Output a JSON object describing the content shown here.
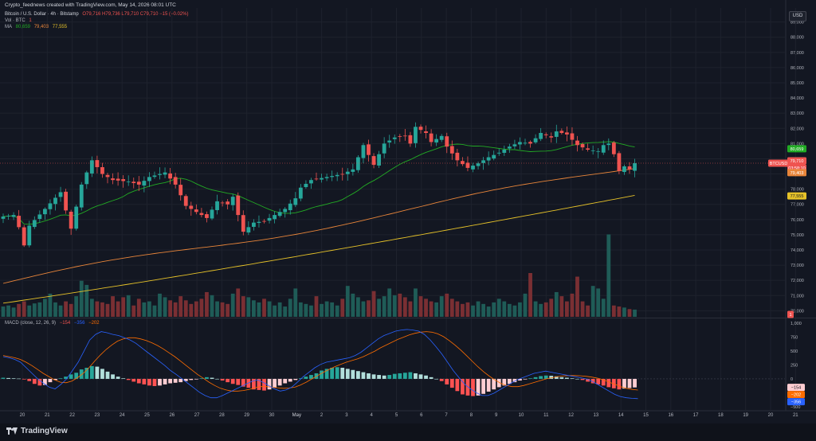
{
  "header": {
    "text": "Crypto_feednews created with TradingView.com, May 14, 2026 08:01 UTC"
  },
  "legend": {
    "symbol": "Bitcoin / U.S. Dollar · 4h · Bitstamp",
    "ohlc": "O79,716  H79,736  L79,710  C79,710  −15 (−0.02%)",
    "vol_label": "Vol · BTC",
    "vol_value": "1",
    "ma_label": "MA",
    "ma1": "80,659",
    "ma2": "79,403",
    "ma3": "77,555",
    "macd_label": "MACD (close, 12, 26, 9)",
    "macd_hist": "−154",
    "macd_line": "−356",
    "macd_signal": "−202"
  },
  "currency": "USD",
  "brand": "TradingView",
  "colors": {
    "up": "#26a69a",
    "down": "#ef5350",
    "ma1": "#22ab24",
    "ma2": "#e8853a",
    "ma3": "#e6c229",
    "macd": "#2962ff",
    "signal": "#ff6d00",
    "bg": "#131722",
    "grid": "#1e222d",
    "text": "#b2b5be"
  },
  "price_labels": {
    "symbol": "BTCUSD",
    "price": "79,710",
    "countdown": "03:58:10",
    "ma1": "80,659",
    "ma2": "79,403",
    "ma3": "77,555",
    "vol": "1",
    "macd_hist": "−154",
    "macd_signal": "−202",
    "macd_line": "−356"
  },
  "chart_data": {
    "type": "candlestick",
    "price_axis": {
      "ticks": [
        "89,000",
        "88,000",
        "87,000",
        "86,000",
        "85,000",
        "84,000",
        "83,000",
        "82,000",
        "81,000",
        "80,000",
        "79,000",
        "78,000",
        "77,000",
        "76,000",
        "75,000",
        "74,000",
        "73,000",
        "72,000",
        "71,000",
        "70,000"
      ],
      "range": [
        69600,
        89400
      ]
    },
    "macd_axis": {
      "ticks": [
        "1,000",
        "750",
        "500",
        "250",
        "0",
        "−250",
        "−500"
      ],
      "range": [
        -560,
        1060
      ]
    },
    "x_axis": {
      "labels": [
        "20",
        "21",
        "22",
        "23",
        "24",
        "25",
        "26",
        "27",
        "28",
        "29",
        "30",
        "May",
        "2",
        "3",
        "4",
        "5",
        "6",
        "7",
        "8",
        "9",
        "10",
        "11",
        "12",
        "13",
        "14",
        "15",
        "16",
        "17",
        "18",
        "19",
        "20",
        "21"
      ]
    },
    "close_path": [
      [
        0,
        76200
      ],
      [
        2,
        76300
      ],
      [
        3,
        75500
      ],
      [
        4,
        74300
      ],
      [
        5,
        75600
      ],
      [
        8,
        76700
      ],
      [
        11,
        77800
      ],
      [
        13,
        75400
      ],
      [
        15,
        78300
      ],
      [
        17,
        79900
      ],
      [
        19,
        79000
      ],
      [
        21,
        78600
      ],
      [
        24,
        78500
      ],
      [
        26,
        78300
      ],
      [
        28,
        78800
      ],
      [
        31,
        79100
      ],
      [
        33,
        78300
      ],
      [
        35,
        76900
      ],
      [
        37,
        76500
      ],
      [
        39,
        76100
      ],
      [
        41,
        77200
      ],
      [
        43,
        77000
      ],
      [
        44,
        77500
      ],
      [
        45,
        76300
      ],
      [
        46,
        75200
      ],
      [
        48,
        75800
      ],
      [
        50,
        75900
      ],
      [
        52,
        76300
      ],
      [
        54,
        76700
      ],
      [
        56,
        77400
      ],
      [
        57,
        78100
      ],
      [
        59,
        78600
      ],
      [
        62,
        78800
      ],
      [
        65,
        79000
      ],
      [
        67,
        79300
      ],
      [
        69,
        80900
      ],
      [
        71,
        79600
      ],
      [
        73,
        81000
      ],
      [
        75,
        81400
      ],
      [
        77,
        81500
      ],
      [
        78,
        81000
      ],
      [
        79,
        82100
      ],
      [
        81,
        81700
      ],
      [
        82,
        81100
      ],
      [
        84,
        81500
      ],
      [
        85,
        80800
      ],
      [
        87,
        79900
      ],
      [
        89,
        79400
      ],
      [
        91,
        79700
      ],
      [
        93,
        80100
      ],
      [
        95,
        80400
      ],
      [
        97,
        80800
      ],
      [
        99,
        81100
      ],
      [
        101,
        81000
      ],
      [
        103,
        81700
      ],
      [
        105,
        81400
      ],
      [
        106,
        81800
      ],
      [
        108,
        81600
      ],
      [
        110,
        80900
      ],
      [
        112,
        80600
      ],
      [
        114,
        80500
      ],
      [
        115,
        80900
      ],
      [
        116,
        81000
      ],
      [
        117,
        80300
      ],
      [
        118,
        79200
      ],
      [
        119,
        79500
      ],
      [
        120,
        79300
      ],
      [
        121,
        79710
      ]
    ],
    "volume": [
      20,
      22,
      18,
      25,
      30,
      22,
      26,
      28,
      35,
      45,
      28,
      22,
      30,
      25,
      40,
      70,
      62,
      35,
      30,
      28,
      25,
      40,
      30,
      38,
      42,
      22,
      35,
      28,
      30,
      22,
      45,
      38,
      32,
      28,
      40,
      32,
      25,
      30,
      35,
      48,
      42,
      30,
      28,
      25,
      45,
      55,
      40,
      38,
      32,
      28,
      35,
      30,
      22,
      28,
      20,
      35,
      55,
      28,
      25,
      22,
      40,
      25,
      30,
      28,
      22,
      35,
      60,
      45,
      38,
      30,
      32,
      50,
      35,
      40,
      55,
      42,
      45,
      38,
      30,
      55,
      40,
      35,
      30,
      28,
      40,
      45,
      35,
      30,
      25,
      28,
      22,
      30,
      25,
      20,
      28,
      35,
      30,
      25,
      22,
      28,
      45,
      85,
      30,
      25,
      28,
      35,
      48,
      40,
      30,
      45,
      78,
      30,
      22,
      60,
      55,
      35,
      160,
      22,
      20,
      18,
      15,
      14
    ],
    "macd_hist": [
      20,
      15,
      10,
      5,
      -10,
      -40,
      -90,
      -120,
      -110,
      -60,
      -20,
      10,
      40,
      80,
      110,
      170,
      200,
      230,
      220,
      180,
      130,
      80,
      40,
      10,
      -20,
      -50,
      -80,
      -100,
      -120,
      -130,
      -120,
      -100,
      -80,
      -70,
      -60,
      -40,
      -20,
      -10,
      10,
      30,
      20,
      0,
      -30,
      -60,
      -90,
      -110,
      -140,
      -160,
      -190,
      -200,
      -210,
      -190,
      -160,
      -120,
      -80,
      -50,
      -20,
      10,
      40,
      70,
      100,
      150,
      180,
      200,
      210,
      200,
      180,
      160,
      140,
      120,
      100,
      80,
      70,
      60,
      70,
      90,
      100,
      110,
      120,
      100,
      80,
      60,
      30,
      0,
      -40,
      -100,
      -160,
      -220,
      -280,
      -300,
      -310,
      -300,
      -270,
      -230,
      -190,
      -150,
      -120,
      -90,
      -60,
      -30,
      -10,
      10,
      30,
      50,
      60,
      55,
      45,
      30,
      20,
      10,
      0,
      -20,
      -50,
      -80,
      -100,
      -120,
      -150,
      -170,
      -190,
      -175,
      -165,
      -154
    ],
    "macd_line": [
      400,
      380,
      350,
      300,
      200,
      100,
      0,
      -80,
      -150,
      -180,
      -100,
      0,
      150,
      300,
      500,
      700,
      800,
      850,
      830,
      800,
      780,
      740,
      700,
      640,
      560,
      480,
      400,
      320,
      240,
      150,
      80,
      0,
      -80,
      -160,
      -240,
      -300,
      -340,
      -340,
      -300,
      -250,
      -200,
      -150,
      -100,
      -50,
      -20,
      -60,
      -120,
      -180,
      -220,
      -200,
      -150,
      -60,
      40,
      120,
      200,
      260,
      300,
      320,
      340,
      360,
      380,
      420,
      480,
      560,
      640,
      720,
      780,
      820,
      860,
      880,
      890,
      880,
      860,
      800,
      700,
      580,
      450,
      300,
      150,
      20,
      -100,
      -180,
      -250,
      -300,
      -300,
      -260,
      -200,
      -140,
      -80,
      -20,
      20,
      60,
      100,
      120,
      140,
      120,
      100,
      80,
      60,
      40,
      20,
      0,
      -40,
      -100,
      -160,
      -220,
      -280,
      -320,
      -340,
      -350,
      -356
    ],
    "signal_line": [
      420,
      400,
      380,
      350,
      300,
      240,
      170,
      100,
      40,
      -20,
      -60,
      -70,
      -40,
      20,
      100,
      200,
      320,
      430,
      530,
      610,
      680,
      720,
      740,
      740,
      720,
      690,
      650,
      600,
      540,
      470,
      400,
      320,
      240,
      160,
      80,
      10,
      -60,
      -120,
      -170,
      -200,
      -220,
      -220,
      -210,
      -190,
      -160,
      -140,
      -140,
      -150,
      -160,
      -170,
      -165,
      -150,
      -110,
      -60,
      0,
      60,
      120,
      170,
      220,
      260,
      300,
      330,
      360,
      400,
      450,
      500,
      560,
      610,
      660,
      710,
      750,
      790,
      820,
      840,
      850,
      840,
      810,
      760,
      690,
      610,
      520,
      420,
      320,
      220,
      130,
      50,
      -20,
      -80,
      -120,
      -140,
      -140,
      -120,
      -90,
      -60,
      -30,
      0,
      20,
      40,
      55,
      60,
      60,
      55,
      45,
      30,
      10,
      -20,
      -60,
      -100,
      -140,
      -170,
      -190,
      -202
    ]
  }
}
